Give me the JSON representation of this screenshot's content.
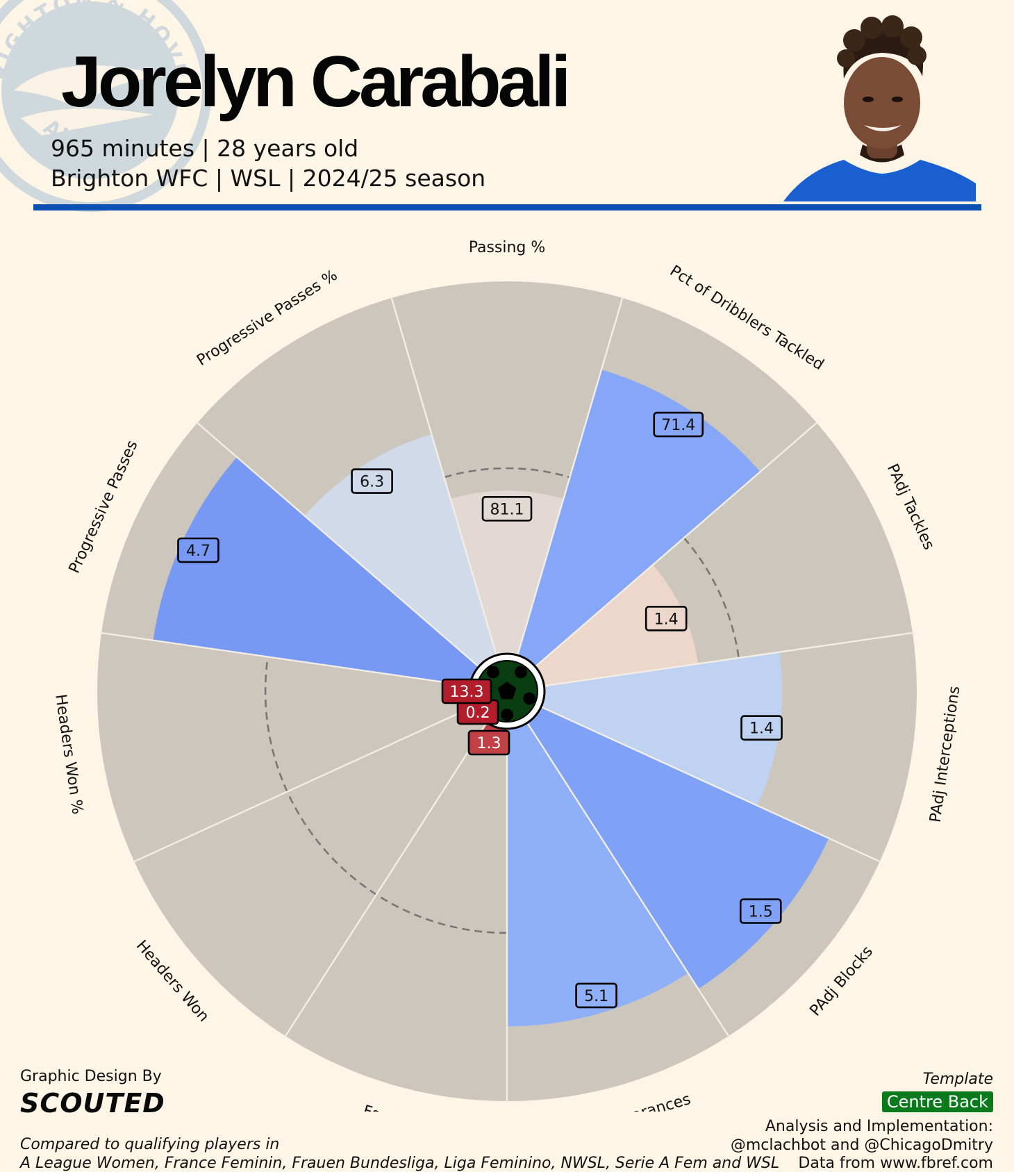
{
  "header": {
    "player_name": "Jorelyn Carabali",
    "line1": "965 minutes | 28 years old",
    "line2": "Brighton WFC | WSL | 2024/25 season",
    "rule_color": "#0d52b3"
  },
  "crest": {
    "text_top": "RIGHTON & HOVE",
    "text_bottom": "ALBION",
    "icon": "seagull-crest-icon"
  },
  "portrait": {
    "icon": "player-photo-icon"
  },
  "chart_data": {
    "type": "polar-bar",
    "direction": "clockwise",
    "start_angle_deg": 0,
    "rlim": [
      0,
      100
    ],
    "metrics": [
      {
        "label": "Passing %",
        "value": "81.1",
        "percentile": 44,
        "baseline": 50,
        "color": "#e3d9d4",
        "label_bg": "#e3d9d4",
        "label_fg": "#111111"
      },
      {
        "label": "Pct of Dribblers Tackled",
        "value": "71.4",
        "percentile": 80,
        "baseline": null,
        "color": "#86a7f7",
        "label_bg": "#86a7f7",
        "label_fg": "#111111"
      },
      {
        "label": "PAdj Tackles",
        "value": "1.4",
        "percentile": 42,
        "baseline": 53,
        "color": "#edd6ca",
        "label_bg": "#edd6ca",
        "label_fg": "#111111"
      },
      {
        "label": "PAdj Interceptions",
        "value": "1.4",
        "percentile": 64,
        "baseline": null,
        "color": "#c0d2f2",
        "label_bg": "#c0d2f2",
        "label_fg": "#111111"
      },
      {
        "label": "PAdj Blocks",
        "value": "1.5",
        "percentile": 85,
        "baseline": null,
        "color": "#80a2f6",
        "label_bg": "#80a2f6",
        "label_fg": "#111111"
      },
      {
        "label": "PAdj Clearances",
        "value": "5.1",
        "percentile": 80,
        "baseline": null,
        "color": "#8fb0f9",
        "label_bg": "#8fb0f9",
        "label_fg": "#111111"
      },
      {
        "label": "Fouls",
        "value": "1.3",
        "percentile": 4,
        "baseline": 55,
        "color": "#c04046",
        "label_bg": "#c04046",
        "label_fg": "#ffffff"
      },
      {
        "label": "Headers Won",
        "value": "0.2",
        "percentile": 1,
        "baseline": 55,
        "color": "#b31c2a",
        "label_bg": "#b31c2a",
        "label_fg": "#ffffff"
      },
      {
        "label": "Headers Won %",
        "value": "13.3",
        "percentile": 1,
        "baseline": 55,
        "color": "#b31c2a",
        "label_bg": "#b31c2a",
        "label_fg": "#ffffff"
      },
      {
        "label": "Progressive Passes",
        "value": "4.7",
        "percentile": 86,
        "baseline": null,
        "color": "#7799f4",
        "label_bg": "#7799f4",
        "label_fg": "#111111"
      },
      {
        "label": "Progressive Passes %",
        "value": "6.3",
        "percentile": 62,
        "baseline": null,
        "color": "#d0daeb",
        "label_bg": "#d0daeb",
        "label_fg": "#111111"
      }
    ],
    "background_color": "#ccc6bd",
    "center_icon": "soccer-ball-icon"
  },
  "footer": {
    "design_label": "Graphic Design By",
    "brand": "SCOUTED",
    "compared_line1": "Compared to qualifying players in",
    "compared_line2": "A League Women, France Feminin, Frauen Bundesliga, Liga Feminino, NWSL, Serie A Fem and WSL",
    "template_label": "Template",
    "template_value": "Centre Back",
    "template_color": "#0a7a1c",
    "credit_line1": "Analysis and Implementation:",
    "credit_line2": "@mclachbot and @ChicagoDmitry",
    "credit_line3": "Data from www.fbref.com"
  }
}
